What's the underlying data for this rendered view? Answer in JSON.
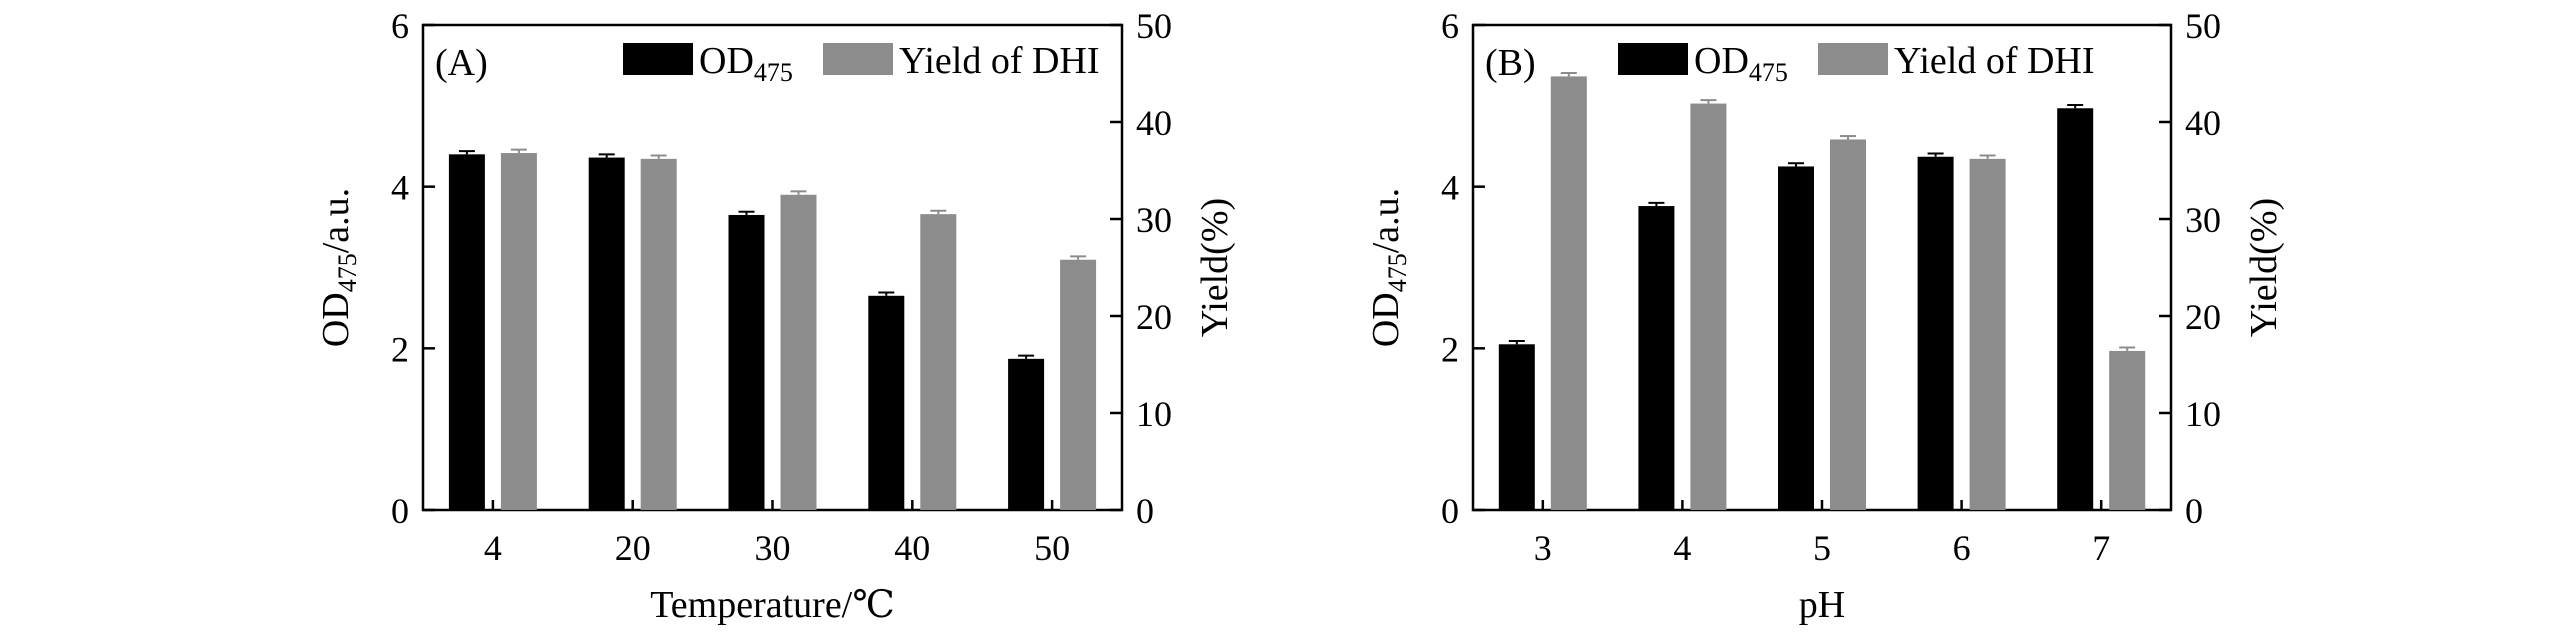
{
  "chart_data": [
    {
      "type": "bar",
      "panel_label": "(A)",
      "xlabel": "Temperature/℃",
      "ylabel_left": "OD",
      "ylabel_left_sub": "475",
      "ylabel_left_suffix": "/a.u.",
      "ylabel_right": "Yield(%)",
      "categories": [
        "4",
        "20",
        "30",
        "40",
        "50"
      ],
      "ylim_left": [
        0,
        6
      ],
      "ylim_right": [
        0,
        50
      ],
      "yticks_left": [
        0,
        2,
        4,
        6
      ],
      "yticks_right": [
        0,
        10,
        20,
        30,
        40,
        50
      ],
      "series": [
        {
          "name": "OD",
          "name_sub": "475",
          "axis": "left",
          "color": "#000000",
          "values": [
            4.4,
            4.36,
            3.65,
            2.65,
            1.87
          ],
          "errors": [
            0.04,
            0.04,
            0.04,
            0.04,
            0.04
          ]
        },
        {
          "name": "Yield of DHI",
          "axis": "right",
          "color": "#8c8c8c",
          "values": [
            36.8,
            36.2,
            32.5,
            30.5,
            25.8
          ],
          "errors": [
            0.35,
            0.35,
            0.35,
            0.35,
            0.35
          ]
        }
      ]
    },
    {
      "type": "bar",
      "panel_label": "(B)",
      "xlabel": "pH",
      "ylabel_left": "OD",
      "ylabel_left_sub": "475",
      "ylabel_left_suffix": "/a.u.",
      "ylabel_right": "Yield(%)",
      "categories": [
        "3",
        "4",
        "5",
        "6",
        "7"
      ],
      "ylim_left": [
        0,
        6
      ],
      "ylim_right": [
        0,
        50
      ],
      "yticks_left": [
        0,
        2,
        4,
        6
      ],
      "yticks_right": [
        0,
        10,
        20,
        30,
        40,
        50
      ],
      "series": [
        {
          "name": "OD",
          "name_sub": "475",
          "axis": "left",
          "color": "#000000",
          "values": [
            2.05,
            3.76,
            4.25,
            4.37,
            4.97
          ],
          "errors": [
            0.04,
            0.04,
            0.04,
            0.04,
            0.04
          ]
        },
        {
          "name": "Yield of DHI",
          "axis": "right",
          "color": "#8c8c8c",
          "values": [
            44.7,
            41.9,
            38.2,
            36.2,
            16.4
          ],
          "errors": [
            0.35,
            0.35,
            0.35,
            0.35,
            0.35
          ]
        }
      ]
    }
  ]
}
